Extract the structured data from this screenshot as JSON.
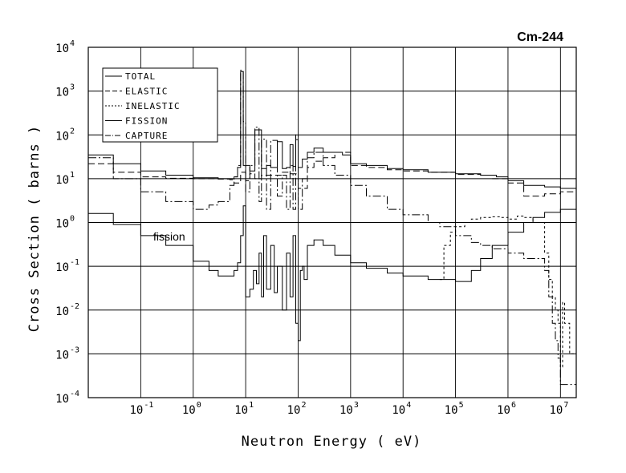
{
  "chart_data": {
    "type": "line",
    "title": "Cm-244",
    "xlabel": "Neutron Energy ( eV)",
    "ylabel": "Cross Section ( barns )",
    "x_scale": "log",
    "y_scale": "log",
    "xlim": [
      0.01,
      20000000
    ],
    "ylim": [
      0.0001,
      10000
    ],
    "grid": true,
    "legend_position": "top-left",
    "x_ticks": [
      {
        "base": "10",
        "exp": "-1",
        "value": 0.1
      },
      {
        "base": "10",
        "exp": "0",
        "value": 1
      },
      {
        "base": "10",
        "exp": "1",
        "value": 10
      },
      {
        "base": "10",
        "exp": "2",
        "value": 100
      },
      {
        "base": "10",
        "exp": "3",
        "value": 1000
      },
      {
        "base": "10",
        "exp": "4",
        "value": 10000
      },
      {
        "base": "10",
        "exp": "5",
        "value": 100000
      },
      {
        "base": "10",
        "exp": "6",
        "value": 1000000
      },
      {
        "base": "10",
        "exp": "7",
        "value": 10000000
      }
    ],
    "y_ticks": [
      {
        "base": "10",
        "exp": "4",
        "value": 10000
      },
      {
        "base": "10",
        "exp": "3",
        "value": 1000
      },
      {
        "base": "10",
        "exp": "2",
        "value": 100
      },
      {
        "base": "10",
        "exp": "1",
        "value": 10
      },
      {
        "base": "10",
        "exp": "0",
        "value": 1
      },
      {
        "base": "10",
        "exp": "-1",
        "value": 0.1
      },
      {
        "base": "10",
        "exp": "-2",
        "value": 0.01
      },
      {
        "base": "10",
        "exp": "-3",
        "value": 0.001
      },
      {
        "base": "10",
        "exp": "-4",
        "value": 0.0001
      }
    ],
    "annotation": "fission",
    "series": [
      {
        "name": "TOTAL",
        "dash": "",
        "x": [
          0.01,
          0.03,
          0.1,
          0.3,
          1,
          3,
          6,
          7,
          8,
          9,
          10,
          12,
          15,
          20,
          25,
          30,
          40,
          50,
          60,
          70,
          80,
          90,
          100,
          120,
          150,
          200,
          300,
          500,
          700,
          1000,
          2000,
          5000,
          10000,
          30000,
          100000,
          300000,
          600000,
          1000000,
          2000000,
          5000000,
          10000000,
          20000000
        ],
        "y": [
          35,
          22,
          15,
          12,
          10.5,
          10,
          11,
          18,
          2800,
          20,
          20,
          15,
          130,
          17,
          20,
          18,
          70,
          17,
          18,
          60,
          19,
          78,
          18,
          28,
          40,
          50,
          40,
          40,
          35,
          22,
          20,
          17,
          16,
          14,
          13,
          12,
          11,
          9,
          7,
          6.5,
          6,
          6
        ]
      },
      {
        "name": "ELASTIC",
        "dash": "8,4",
        "x": [
          0.01,
          0.03,
          0.1,
          0.3,
          1,
          3,
          5,
          6,
          8,
          10,
          12,
          15,
          20,
          30,
          50,
          70,
          100,
          150,
          200,
          300,
          500,
          1000,
          2000,
          5000,
          10000,
          30000,
          100000,
          300000,
          500000,
          1000000,
          2000000,
          5000000,
          10000000,
          20000000
        ],
        "y": [
          22,
          14,
          11,
          10.2,
          10,
          9.8,
          9.5,
          8,
          14,
          9,
          13,
          10,
          12,
          12,
          14,
          13,
          6,
          18,
          25,
          30,
          40,
          20,
          18,
          16,
          15,
          14,
          12.5,
          12,
          10,
          8,
          4,
          4.5,
          5,
          5.5
        ]
      },
      {
        "name": "INELASTIC",
        "dash": "3,3",
        "x": [
          50000,
          60000,
          80000,
          100000,
          150000,
          200000,
          300000,
          500000,
          700000,
          1000000,
          1500000,
          2000000,
          3000000,
          5000000,
          6000000,
          7000000,
          8000000,
          9000000,
          10000000,
          11000000,
          12000000,
          15000000,
          20000000
        ],
        "y": [
          0.05,
          0.3,
          0.6,
          0.8,
          1.0,
          1.2,
          1.3,
          1.35,
          1.3,
          1.2,
          1.4,
          1.3,
          1.0,
          0.2,
          0.05,
          0.02,
          0.01,
          0.005,
          0.0005,
          0.015,
          0.005,
          0.001,
          0.0008
        ]
      },
      {
        "name": "FISSION",
        "dash": "",
        "x": [
          0.01,
          0.03,
          0.1,
          0.3,
          1,
          2,
          3,
          5,
          6,
          7,
          8,
          9,
          10,
          12,
          14,
          16,
          18,
          20,
          22,
          25,
          30,
          35,
          40,
          50,
          60,
          70,
          80,
          90,
          100,
          110,
          120,
          130,
          150,
          200,
          300,
          500,
          1000,
          2000,
          5000,
          10000,
          30000,
          50000,
          100000,
          200000,
          300000,
          500000,
          1000000,
          2000000,
          3000000,
          5000000,
          10000000,
          20000000
        ],
        "y": [
          1.6,
          0.9,
          0.5,
          0.3,
          0.13,
          0.08,
          0.06,
          0.06,
          0.08,
          0.12,
          0.5,
          2.4,
          0.02,
          0.03,
          0.08,
          0.04,
          0.2,
          0.02,
          0.5,
          0.03,
          0.3,
          0.025,
          0.1,
          0.01,
          0.2,
          0.02,
          0.5,
          0.005,
          0.002,
          0.08,
          0.1,
          0.05,
          0.3,
          0.4,
          0.3,
          0.18,
          0.12,
          0.09,
          0.07,
          0.06,
          0.05,
          0.05,
          0.045,
          0.08,
          0.15,
          0.3,
          0.6,
          1.0,
          1.3,
          1.7,
          2.0,
          2.5
        ]
      },
      {
        "name": "CAPTURE",
        "dash": "10,3,2,3",
        "x": [
          0.01,
          0.03,
          0.1,
          0.3,
          1,
          2,
          3,
          5,
          6,
          7,
          8,
          9,
          10,
          12,
          15,
          18,
          20,
          25,
          30,
          40,
          50,
          60,
          70,
          80,
          90,
          100,
          120,
          150,
          200,
          300,
          500,
          1000,
          2000,
          5000,
          10000,
          30000,
          50000,
          100000,
          200000,
          300000,
          500000,
          1000000,
          2000000,
          5000000,
          6000000,
          7000000,
          8000000,
          9000000,
          10000000,
          20000000
        ],
        "y": [
          30,
          10,
          5,
          3,
          2,
          2.5,
          3,
          7,
          11,
          20,
          3000,
          200,
          5,
          20,
          150,
          3,
          80,
          2,
          75,
          4,
          12,
          2,
          20,
          2,
          100,
          2,
          10,
          30,
          40,
          20,
          12,
          7,
          4,
          2,
          1.5,
          1.0,
          0.8,
          0.5,
          0.35,
          0.3,
          0.25,
          0.2,
          0.15,
          0.08,
          0.02,
          0.005,
          0.002,
          0.0008,
          0.0002,
          0.0001
        ]
      }
    ]
  }
}
